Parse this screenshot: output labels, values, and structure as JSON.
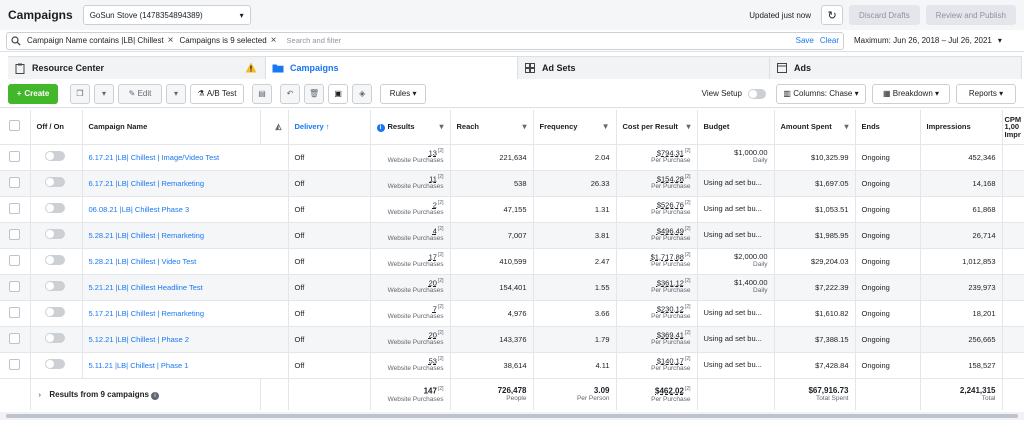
{
  "topbar": {
    "title": "Campaigns",
    "account": "GoSun Stove (1478354894389)",
    "updated": "Updated just now",
    "discard": "Discard Drafts",
    "review": "Review and Publish"
  },
  "filters": {
    "chip1": "Campaign Name contains |LB| Chillest",
    "chip2": "Campaigns is 9 selected",
    "placeholder": "Search and filter",
    "save": "Save",
    "clear": "Clear",
    "daterange": "Maximum: Jun 26, 2018 – Jul 26, 2021"
  },
  "tabs": {
    "resource": "Resource Center",
    "campaigns": "Campaigns",
    "adsets": "Ad Sets",
    "ads": "Ads"
  },
  "toolbar": {
    "create": "Create",
    "edit": "Edit",
    "abtest": "A/B Test",
    "rules": "Rules",
    "view_setup": "View Setup",
    "columns": "Columns: Chase",
    "breakdown": "Breakdown",
    "reports": "Reports"
  },
  "columns": {
    "onoff": "Off / On",
    "name": "Campaign Name",
    "delivery": "Delivery ↑",
    "results": "Results",
    "reach": "Reach",
    "frequency": "Frequency",
    "cpr": "Cost per Result",
    "budget": "Budget",
    "spent": "Amount Spent",
    "ends": "Ends",
    "impressions": "Impressions",
    "cpm": "CPM 1,00 Impr"
  },
  "rows": [
    {
      "name": "6.17.21 |LB| Chillest | Image/Video Test",
      "delivery": "Off",
      "results": "13",
      "results_sub": "Website Purchases",
      "reach": "221,634",
      "frequency": "2.04",
      "cpr": "$794.31",
      "cpr_sub": "Per Purchase",
      "budget": "$1,000.00",
      "budget_sub": "Daily",
      "spent": "$10,325.99",
      "ends": "Ongoing",
      "impressions": "452,346"
    },
    {
      "name": "6.17.21 |LB| Chillest | Remarketing",
      "delivery": "Off",
      "results": "11",
      "results_sub": "Website Purchases",
      "reach": "538",
      "frequency": "26.33",
      "cpr": "$154.28",
      "cpr_sub": "Per Purchase",
      "budget": "Using ad set bu...",
      "budget_sub": "",
      "spent": "$1,697.05",
      "ends": "Ongoing",
      "impressions": "14,168"
    },
    {
      "name": "06.08.21 |LB| Chillest Phase 3",
      "delivery": "Off",
      "results": "2",
      "results_sub": "Website Purchases",
      "reach": "47,155",
      "frequency": "1.31",
      "cpr": "$526.76",
      "cpr_sub": "Per Purchase",
      "budget": "Using ad set bu...",
      "budget_sub": "",
      "spent": "$1,053.51",
      "ends": "Ongoing",
      "impressions": "61,868"
    },
    {
      "name": "5.28.21 |LB| Chillest | Remarketing",
      "delivery": "Off",
      "results": "4",
      "results_sub": "Website Purchases",
      "reach": "7,007",
      "frequency": "3.81",
      "cpr": "$496.49",
      "cpr_sub": "Per Purchase",
      "budget": "Using ad set bu...",
      "budget_sub": "",
      "spent": "$1,985.95",
      "ends": "Ongoing",
      "impressions": "26,714"
    },
    {
      "name": "5.28.21 |LB| Chillest | Video Test",
      "delivery": "Off",
      "results": "17",
      "results_sub": "Website Purchases",
      "reach": "410,599",
      "frequency": "2.47",
      "cpr": "$1,717.88",
      "cpr_sub": "Per Purchase",
      "budget": "$2,000.00",
      "budget_sub": "Daily",
      "spent": "$29,204.03",
      "ends": "Ongoing",
      "impressions": "1,012,853"
    },
    {
      "name": "5.21.21 |LB| Chillest Headline Test",
      "delivery": "Off",
      "results": "20",
      "results_sub": "Website Purchases",
      "reach": "154,401",
      "frequency": "1.55",
      "cpr": "$361.12",
      "cpr_sub": "Per Purchase",
      "budget": "$1,400.00",
      "budget_sub": "Daily",
      "spent": "$7,222.39",
      "ends": "Ongoing",
      "impressions": "239,973"
    },
    {
      "name": "5.17.21 |LB| Chillest | Remarketing",
      "delivery": "Off",
      "results": "7",
      "results_sub": "Website Purchases",
      "reach": "4,976",
      "frequency": "3.66",
      "cpr": "$230.12",
      "cpr_sub": "Per Purchase",
      "budget": "Using ad set bu...",
      "budget_sub": "",
      "spent": "$1,610.82",
      "ends": "Ongoing",
      "impressions": "18,201"
    },
    {
      "name": "5.12.21 |LB| Chillest | Phase 2",
      "delivery": "Off",
      "results": "20",
      "results_sub": "Website Purchases",
      "reach": "143,376",
      "frequency": "1.79",
      "cpr": "$369.41",
      "cpr_sub": "Per Purchase",
      "budget": "Using ad set bu...",
      "budget_sub": "",
      "spent": "$7,388.15",
      "ends": "Ongoing",
      "impressions": "256,665"
    },
    {
      "name": "5.11.21 |LB| Chillest | Phase 1",
      "delivery": "Off",
      "results": "53",
      "results_sub": "Website Purchases",
      "reach": "38,614",
      "frequency": "4.11",
      "cpr": "$140.17",
      "cpr_sub": "Per Purchase",
      "budget": "Using ad set bu...",
      "budget_sub": "",
      "spent": "$7,428.84",
      "ends": "Ongoing",
      "impressions": "158,527"
    }
  ],
  "summary": {
    "label": "Results from 9 campaigns",
    "results": "147",
    "results_sub": "Website Purchases",
    "reach": "726,478",
    "reach_sub": "People",
    "frequency": "3.09",
    "frequency_sub": "Per Person",
    "cpr": "$462.02",
    "cpr_sub": "Per Purchase",
    "spent": "$67,916.73",
    "spent_sub": "Total Spent",
    "impressions": "2,241,315",
    "impressions_sub": "Total"
  },
  "colors": {
    "accent": "#1877f2",
    "create": "#42b72a",
    "warning": "#f7b928"
  }
}
